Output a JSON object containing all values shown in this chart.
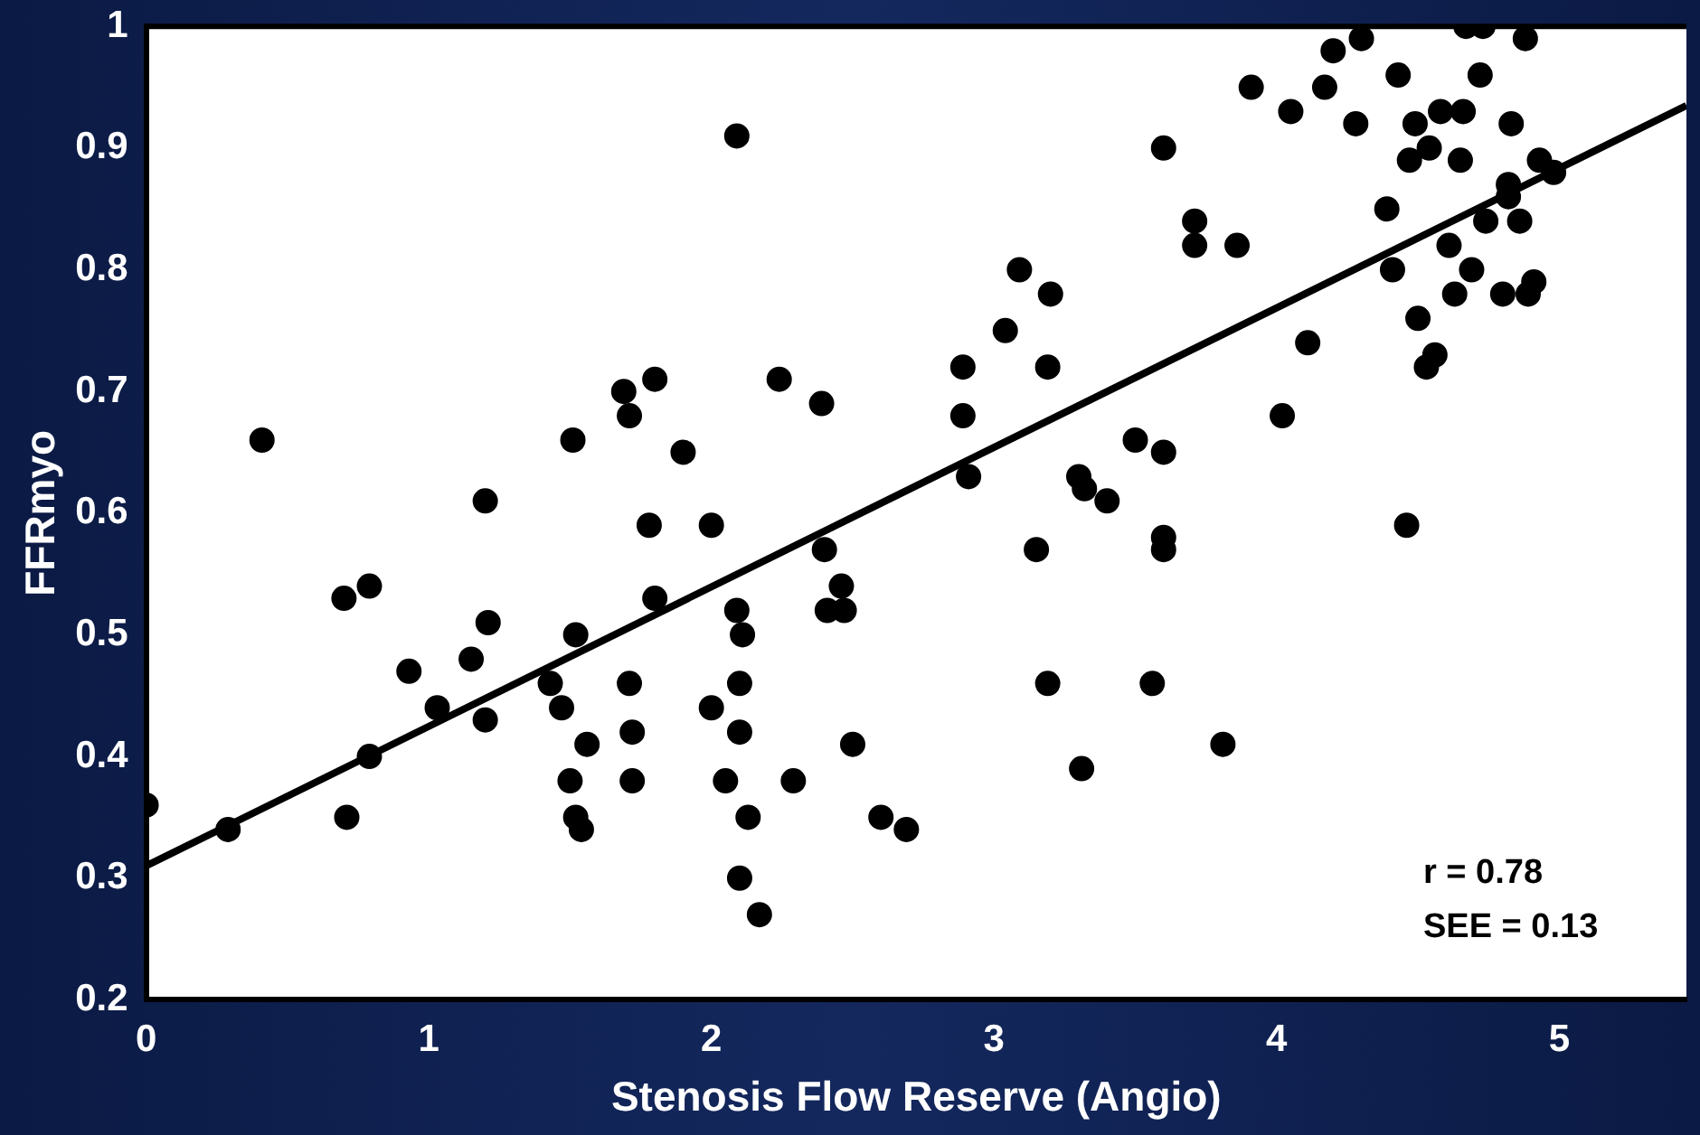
{
  "chart_data": {
    "type": "scatter",
    "xlabel": "Stenosis Flow Reserve (Angio)",
    "ylabel": "FFRmyo",
    "xlim": [
      0,
      5.45
    ],
    "xticks": [
      0,
      1,
      2,
      3,
      4,
      5
    ],
    "ylim": [
      0.2,
      1
    ],
    "yticks": [
      0.2,
      0.3,
      0.4,
      0.5,
      0.6,
      0.7,
      0.8,
      0.9,
      1
    ],
    "grid": false,
    "legend": false,
    "marker": "circle",
    "annotations": [
      "r = 0.78",
      "SEE = 0.13"
    ],
    "series": [
      {
        "type": "scatter",
        "color": "#000000",
        "x": [
          0,
          0.29,
          0.41,
          0.7,
          0.71,
          0.79,
          0.79,
          0.93,
          1.03,
          1.15,
          1.2,
          1.21,
          1.2,
          1.43,
          1.47,
          1.51,
          1.52,
          1.5,
          1.52,
          1.54,
          1.56,
          1.69,
          1.71,
          1.71,
          1.72,
          1.72,
          1.8,
          1.78,
          1.8,
          1.9,
          2.0,
          2.0,
          2.05,
          2.09,
          2.09,
          2.11,
          2.1,
          2.1,
          2.1,
          2.13,
          2.17,
          2.24,
          2.29,
          2.39,
          2.4,
          2.41,
          2.46,
          2.47,
          2.5,
          2.6,
          2.69,
          2.89,
          2.89,
          2.91,
          3.91,
          4.05,
          4.17,
          4.2,
          4.3,
          4.28,
          4.43,
          4.72,
          3.6,
          3.71,
          3.71,
          3.86,
          3.09,
          3.2,
          3.04,
          3.19,
          4.11,
          4.02,
          3.5,
          3.6,
          3.3,
          3.32,
          3.4,
          3.15,
          3.6,
          3.6,
          4.46,
          4.58,
          4.66,
          4.83,
          4.49,
          4.54,
          4.47,
          4.65,
          4.93,
          4.98,
          4.82,
          4.39,
          4.82,
          4.74,
          4.86,
          4.61,
          4.69,
          4.41,
          4.8,
          4.91,
          4.89,
          4.63,
          4.5,
          4.56,
          4.53,
          4.67,
          4.73,
          4.88,
          3.19,
          3.56,
          3.81,
          3.31
        ],
        "values": [
          0.36,
          0.34,
          0.66,
          0.53,
          0.35,
          0.54,
          0.4,
          0.47,
          0.44,
          0.48,
          0.61,
          0.51,
          0.43,
          0.46,
          0.44,
          0.66,
          0.5,
          0.38,
          0.35,
          0.34,
          0.41,
          0.7,
          0.68,
          0.46,
          0.42,
          0.38,
          0.71,
          0.59,
          0.53,
          0.65,
          0.59,
          0.44,
          0.38,
          0.91,
          0.52,
          0.5,
          0.46,
          0.42,
          0.3,
          0.35,
          0.27,
          0.71,
          0.38,
          0.69,
          0.57,
          0.52,
          0.54,
          0.52,
          0.41,
          0.35,
          0.34,
          0.72,
          0.68,
          0.63,
          0.95,
          0.93,
          0.95,
          0.98,
          0.99,
          0.92,
          0.96,
          0.96,
          0.9,
          0.84,
          0.82,
          0.82,
          0.8,
          0.78,
          0.75,
          0.72,
          0.74,
          0.68,
          0.66,
          0.65,
          0.63,
          0.62,
          0.61,
          0.57,
          0.58,
          0.57,
          0.59,
          0.93,
          0.93,
          0.92,
          0.92,
          0.9,
          0.89,
          0.89,
          0.89,
          0.88,
          0.87,
          0.85,
          0.86,
          0.84,
          0.84,
          0.82,
          0.8,
          0.8,
          0.78,
          0.79,
          0.78,
          0.78,
          0.76,
          0.73,
          0.72,
          1.0,
          1.0,
          0.99,
          0.46,
          0.46,
          0.41,
          0.39
        ]
      },
      {
        "type": "line",
        "color": "#000000",
        "line_style": "solid",
        "marker": "none",
        "x": [
          0,
          5.45
        ],
        "values": [
          0.31,
          0.935
        ]
      }
    ]
  }
}
